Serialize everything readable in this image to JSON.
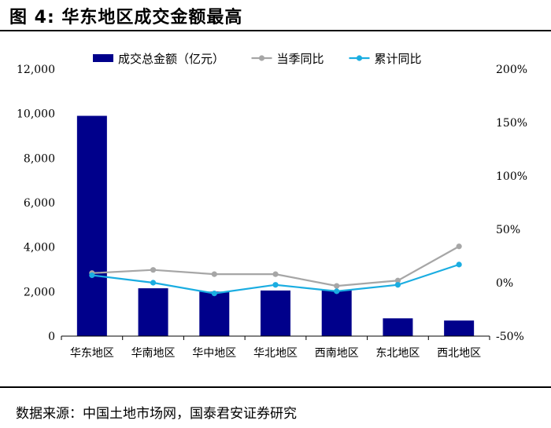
{
  "figure": {
    "title": "图 4:  华东地区成交金额最高",
    "source": "数据来源：中国土地市场网，国泰君安证券研究"
  },
  "chart_data": {
    "type": "bar",
    "categories": [
      "华东地区",
      "华南地区",
      "华中地区",
      "华北地区",
      "西南地区",
      "东北地区",
      "西北地区"
    ],
    "series": [
      {
        "name": "成交总金额（亿元）",
        "kind": "bar",
        "axis": "left",
        "color": "#00008B",
        "values": [
          9900,
          2150,
          2000,
          2050,
          2050,
          800,
          700
        ]
      },
      {
        "name": "当季同比",
        "kind": "line",
        "axis": "right",
        "color": "#A6A6A6",
        "values": [
          0.09,
          0.12,
          0.08,
          0.08,
          -0.03,
          0.02,
          0.34
        ]
      },
      {
        "name": "累计同比",
        "kind": "line",
        "axis": "right",
        "color": "#1AADE1",
        "values": [
          0.07,
          0.0,
          -0.1,
          -0.02,
          -0.08,
          -0.02,
          0.17
        ]
      }
    ],
    "y_left": {
      "ylim": [
        0,
        12000
      ],
      "ticks": [
        0,
        2000,
        4000,
        6000,
        8000,
        10000,
        12000
      ],
      "tick_labels": [
        "0",
        "2,000",
        "4,000",
        "6,000",
        "8,000",
        "10,000",
        "12,000"
      ]
    },
    "y_right": {
      "ylim": [
        -0.5,
        2.0
      ],
      "ticks": [
        -0.5,
        0,
        0.5,
        1.0,
        1.5,
        2.0
      ],
      "tick_labels": [
        "-50%",
        "0%",
        "50%",
        "100%",
        "150%",
        "200%"
      ]
    },
    "grid": false,
    "legend": "top"
  }
}
